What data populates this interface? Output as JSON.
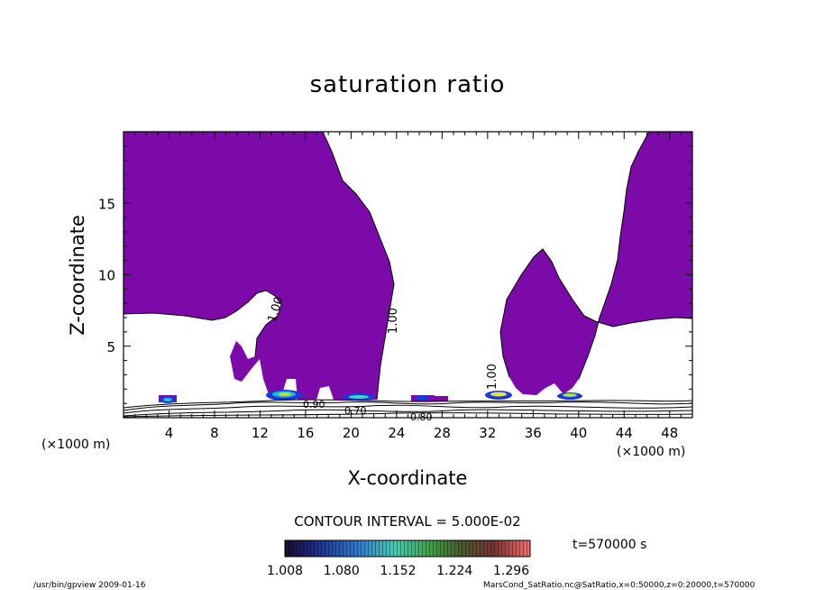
{
  "chart_data": {
    "type": "heatmap",
    "title": "saturation ratio",
    "xlabel": "X-coordinate",
    "ylabel": "Z-coordinate",
    "x_unit": "(×1000 m)",
    "x_unit_right": "(×1000 m)",
    "xlim": [
      0,
      50
    ],
    "ylim": [
      0,
      20
    ],
    "x_ticks": [
      4,
      8,
      12,
      16,
      20,
      24,
      28,
      32,
      36,
      40,
      44,
      48
    ],
    "y_ticks": [
      5,
      10,
      15
    ],
    "contour_interval_text": "CONTOUR INTERVAL = 5.000E-02",
    "time_text": "t=570000 s",
    "colorbar_ticks": [
      "1.008",
      "1.080",
      "1.152",
      "1.224",
      "1.296"
    ],
    "colorbar_range": [
      1.008,
      1.32
    ],
    "contour_labels": [
      "1.00",
      "1.00",
      "1.00",
      "0.90",
      "0.70",
      "0.80"
    ],
    "footer_left": "/usr/bin/gpview   2009-01-16",
    "footer_right": "MarsCond_SatRatio.nc@SatRatio,x=0:50000,z=0:20000,t=570000",
    "colors": {
      "saturated_fill": "#7b0aa8",
      "background": "#ffffff"
    }
  }
}
